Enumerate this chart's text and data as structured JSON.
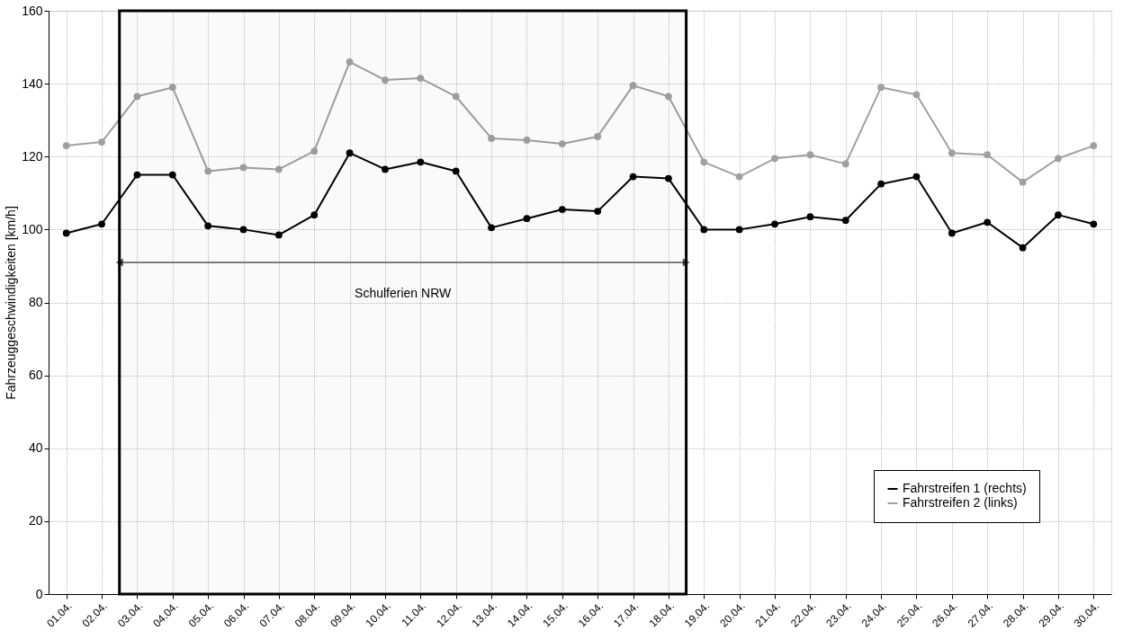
{
  "chart_data": {
    "type": "line",
    "ylabel": "Fahrzeuggeschwindigkeiten [km/h]",
    "categories": [
      "01.04.",
      "02.04.",
      "03.04.",
      "04.04.",
      "05.04.",
      "06.04.",
      "07.04.",
      "08.04.",
      "09.04.",
      "10.04.",
      "11.04.",
      "12.04.",
      "13.04.",
      "14.04.",
      "15.04.",
      "16.04.",
      "17.04.",
      "18.04.",
      "19.04.",
      "20.04.",
      "21.04.",
      "22.04.",
      "23.04.",
      "24.04.",
      "25.04.",
      "26.04.",
      "27.04.",
      "28.04.",
      "29.04.",
      "30.04."
    ],
    "series": [
      {
        "name": "Fahrstreifen 1 (rechts)",
        "color": "#000000",
        "values": [
          99,
          101.5,
          115,
          115,
          101,
          100,
          98.5,
          104,
          121,
          116.5,
          118.5,
          116,
          100.5,
          103,
          105.5,
          105,
          114.5,
          114,
          100,
          100,
          101.5,
          103.5,
          102.5,
          112.5,
          114.5,
          99,
          102,
          95,
          104,
          101.5
        ]
      },
      {
        "name": "Fahrstreifen 2 (links)",
        "color": "#a0a0a0",
        "values": [
          123,
          124,
          136.5,
          139,
          116,
          117,
          116.5,
          121.5,
          146,
          141,
          141.5,
          136.5,
          125,
          124.5,
          123.5,
          125.5,
          139.5,
          136.5,
          118.5,
          114.5,
          119.5,
          120.5,
          118,
          139,
          137,
          121,
          120.5,
          113,
          119.5,
          123
        ]
      }
    ],
    "ylim": [
      0,
      160
    ],
    "yticks": [
      0,
      20,
      40,
      60,
      80,
      100,
      120,
      140,
      160
    ],
    "bands": [
      {
        "axis": "x",
        "from": "03.04.",
        "to": "18.04.",
        "label": "Schulferien NRW",
        "color": "#000000"
      }
    ],
    "grid": true,
    "legend": "bottom right",
    "marker": "circle",
    "line_style": "solid"
  }
}
